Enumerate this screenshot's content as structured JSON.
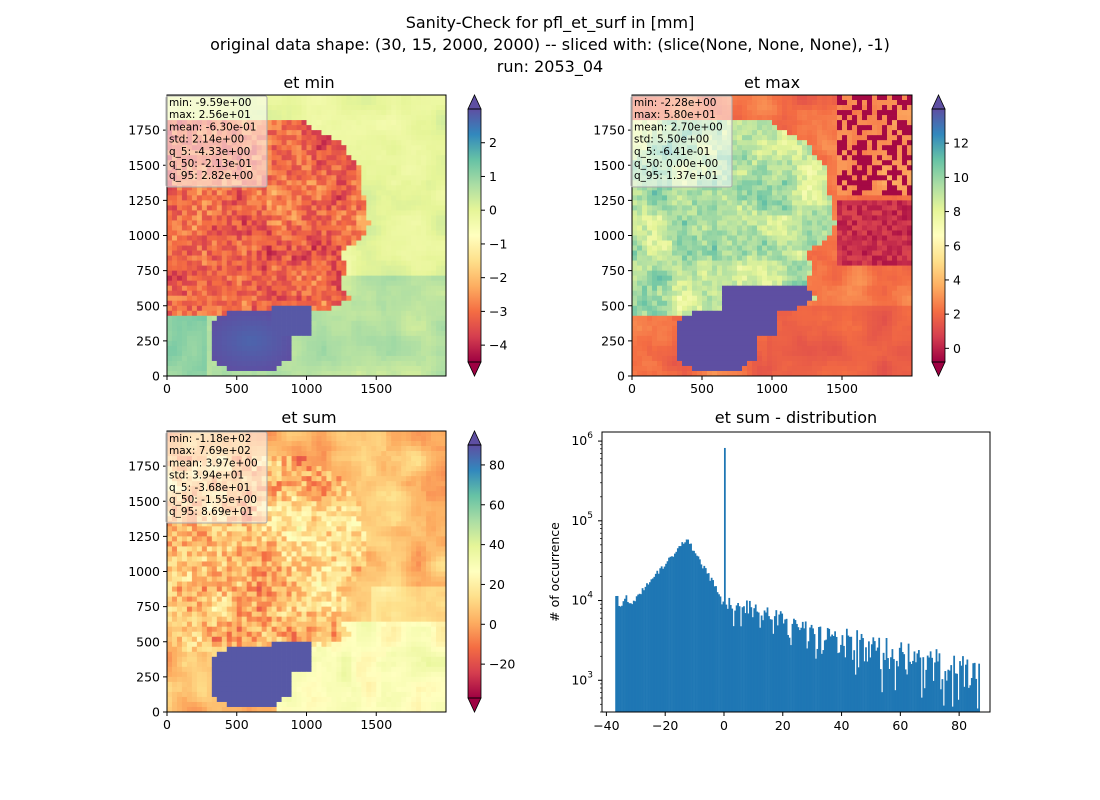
{
  "figure": {
    "title_lines": [
      "Sanity-Check for pfl_et_surf in [mm]",
      "original data shape: (30, 15, 2000, 2000) -- sliced with: (slice(None, None, None), -1)",
      "run: 2053_04"
    ],
    "colormap": [
      "#9e0142",
      "#d53e4f",
      "#f46d43",
      "#fdae61",
      "#fee08b",
      "#ffffbf",
      "#e6f598",
      "#abdda4",
      "#66c2a5",
      "#3288bd",
      "#5e4fa2"
    ]
  },
  "chart_data": [
    {
      "type": "heatmap",
      "title": "et min",
      "xlim": [
        0,
        2000
      ],
      "ylim": [
        0,
        2000
      ],
      "xticks": [
        0,
        500,
        1000,
        1500
      ],
      "yticks": [
        0,
        250,
        500,
        750,
        1000,
        1250,
        1500,
        1750
      ],
      "color_range": [
        -4.5,
        3
      ],
      "colorbar_ticks": [
        2,
        1,
        0,
        -1,
        -2,
        -3,
        -4
      ],
      "colorbar_tick_labels": [
        "2",
        "1",
        "0",
        "−1",
        "−2",
        "−3",
        "−4"
      ],
      "stats": [
        "min: -9.59e+00",
        "max: 2.56e+01",
        "mean: -6.30e-01",
        "std: 2.14e+00",
        "q_5: -4.33e+00",
        "q_50: -2.13e-01",
        "q_95: 2.82e+00"
      ]
    },
    {
      "type": "heatmap",
      "title": "et max",
      "xlim": [
        0,
        2000
      ],
      "ylim": [
        0,
        2000
      ],
      "xticks": [
        0,
        500,
        1000,
        1500
      ],
      "yticks": [
        0,
        250,
        500,
        750,
        1000,
        1250,
        1500,
        1750
      ],
      "color_range": [
        -0.8,
        14
      ],
      "colorbar_ticks": [
        12,
        10,
        8,
        6,
        4,
        2,
        0
      ],
      "colorbar_tick_labels": [
        "12",
        "10",
        "8",
        "6",
        "4",
        "2",
        "0"
      ],
      "stats": [
        "min: -2.28e+00",
        "max: 5.80e+01",
        "mean: 2.70e+00",
        "std: 5.50e+00",
        "q_5: -6.41e-01",
        "q_50: 0.00e+00",
        "q_95: 1.37e+01"
      ]
    },
    {
      "type": "heatmap",
      "title": "et sum",
      "xlim": [
        0,
        2000
      ],
      "ylim": [
        0,
        2000
      ],
      "xticks": [
        0,
        500,
        1000,
        1500
      ],
      "yticks": [
        0,
        250,
        500,
        750,
        1000,
        1250,
        1500,
        1750
      ],
      "color_range": [
        -37,
        90
      ],
      "colorbar_ticks": [
        80,
        60,
        40,
        20,
        0,
        -20
      ],
      "colorbar_tick_labels": [
        "80",
        "60",
        "40",
        "20",
        "0",
        "−20"
      ],
      "stats": [
        "min: -1.18e+02",
        "max: 7.69e+02",
        "mean: 3.97e+00",
        "std: 3.94e+01",
        "q_5: -3.68e+01",
        "q_50: -1.55e+00",
        "q_95: 8.69e+01"
      ]
    },
    {
      "type": "bar",
      "title": "et sum - distribution",
      "ylabel": "# of occurrence",
      "xlabel": "",
      "yscale": "log",
      "xlim": [
        -41.5,
        90.5
      ],
      "ylim": [
        400,
        1300000
      ],
      "xticks": [
        -40,
        -20,
        0,
        20,
        40,
        60,
        80
      ],
      "xtick_labels": [
        "−40",
        "−20",
        "0",
        "20",
        "40",
        "60",
        "80"
      ],
      "ytick_exponents": [
        "3",
        "4",
        "5",
        "6"
      ],
      "ytick_base": "10",
      "bar_color": "#1f77b4",
      "bin_start": -37,
      "bin_end": 87,
      "bin_width": 0.5,
      "spike": {
        "x": 0,
        "value": 820000
      }
    }
  ]
}
